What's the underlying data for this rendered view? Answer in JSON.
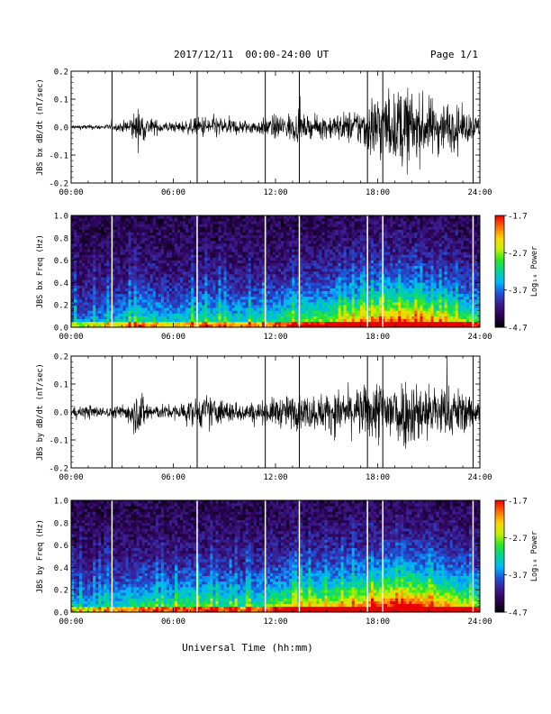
{
  "header": {
    "title": "2017/12/11  00:00-24:00 UT",
    "page": "Page 1/1"
  },
  "footer": {
    "xlabel": "Universal Time (hh:mm)"
  },
  "colors": {
    "trace": "#000000",
    "gap_line": "#000000",
    "gap_line_spectrogram": "#ffffff",
    "colormap": [
      "#000000",
      "#2a0050",
      "#3c1a8c",
      "#1e4fd6",
      "#00b4ff",
      "#00d2a0",
      "#28e628",
      "#c8f000",
      "#ffd200",
      "#ff6a00",
      "#e60000"
    ]
  },
  "chart_data": [
    {
      "type": "line",
      "name": "bx-timeseries",
      "ylabel": "JBS bx dB/dt (nT/sec)",
      "xlim": [
        0,
        24
      ],
      "ylim": [
        -0.2,
        0.2
      ],
      "x_ticks": [
        "00:00",
        "06:00",
        "12:00",
        "18:00",
        "24:00"
      ],
      "y_ticks": [
        "0.2",
        "0.1",
        "0.0",
        "-0.1",
        "-0.2"
      ],
      "data_gaps_hours": [
        2.4,
        7.4,
        11.4,
        13.4,
        17.4,
        18.3,
        23.6
      ],
      "amplitude_envelope": {
        "hours": [
          0,
          2,
          3,
          3.5,
          4,
          4.5,
          5,
          6,
          7,
          8,
          9,
          10,
          11,
          12,
          13,
          14,
          15,
          16,
          17,
          17.5,
          18,
          19,
          19.5,
          20,
          21,
          22,
          23,
          24
        ],
        "abs_dbdt": [
          0.01,
          0.01,
          0.02,
          0.05,
          0.08,
          0.04,
          0.03,
          0.02,
          0.03,
          0.05,
          0.04,
          0.03,
          0.03,
          0.05,
          0.06,
          0.04,
          0.05,
          0.06,
          0.08,
          0.12,
          0.16,
          0.13,
          0.19,
          0.14,
          0.12,
          0.11,
          0.07,
          0.04
        ]
      }
    },
    {
      "type": "heatmap",
      "name": "bx-spectrogram",
      "ylabel": "JBS bx Freq (Hz)",
      "xlim": [
        0,
        24
      ],
      "ylim": [
        0,
        1.0
      ],
      "x_ticks": [
        "00:00",
        "06:00",
        "12:00",
        "18:00",
        "24:00"
      ],
      "y_ticks": [
        "1.0",
        "0.8",
        "0.6",
        "0.4",
        "0.2",
        "0.0"
      ],
      "data_gaps_hours": [
        2.4,
        7.4,
        11.4,
        13.4,
        17.4,
        18.3,
        23.6
      ],
      "colorbar": {
        "label": "Log₁₀ Power",
        "range": [
          -4.7,
          -1.7
        ],
        "ticks": [
          "-1.7",
          "-2.7",
          "-3.7",
          "-4.7"
        ]
      },
      "activity_profile": {
        "hours": [
          0,
          2,
          3,
          4,
          5,
          6,
          7,
          8,
          9,
          10,
          11,
          12,
          13,
          14,
          15,
          16,
          17,
          18,
          19,
          20,
          21,
          22,
          23,
          24
        ],
        "level": [
          0.25,
          0.3,
          0.35,
          0.45,
          0.4,
          0.35,
          0.4,
          0.45,
          0.4,
          0.4,
          0.4,
          0.45,
          0.5,
          0.55,
          0.55,
          0.65,
          0.7,
          0.75,
          0.8,
          0.8,
          0.7,
          0.65,
          0.55,
          0.5
        ]
      }
    },
    {
      "type": "line",
      "name": "by-timeseries",
      "ylabel": "JBS by dB/dt (nT/sec)",
      "xlim": [
        0,
        24
      ],
      "ylim": [
        -0.2,
        0.2
      ],
      "x_ticks": [
        "00:00",
        "06:00",
        "12:00",
        "18:00",
        "24:00"
      ],
      "y_ticks": [
        "0.2",
        "0.1",
        "0.0",
        "-0.1",
        "-0.2"
      ],
      "data_gaps_hours": [
        2.4,
        7.4,
        11.4,
        13.4,
        17.4,
        18.3,
        23.6
      ],
      "amplitude_envelope": {
        "hours": [
          0,
          1,
          2,
          3,
          3.5,
          4,
          4.5,
          5,
          6,
          7,
          8,
          9,
          10,
          11,
          12,
          13,
          14,
          15,
          16,
          17,
          18,
          19,
          20,
          21,
          22,
          23,
          24
        ],
        "abs_dbdt": [
          0.02,
          0.03,
          0.02,
          0.03,
          0.06,
          0.1,
          0.05,
          0.03,
          0.03,
          0.05,
          0.07,
          0.05,
          0.04,
          0.04,
          0.06,
          0.07,
          0.07,
          0.08,
          0.09,
          0.1,
          0.13,
          0.15,
          0.14,
          0.12,
          0.11,
          0.09,
          0.06
        ]
      }
    },
    {
      "type": "heatmap",
      "name": "by-spectrogram",
      "ylabel": "JBS by Freq (Hz)",
      "xlim": [
        0,
        24
      ],
      "ylim": [
        0,
        1.0
      ],
      "x_ticks": [
        "00:00",
        "06:00",
        "12:00",
        "18:00",
        "24:00"
      ],
      "y_ticks": [
        "1.0",
        "0.8",
        "0.6",
        "0.4",
        "0.2",
        "0.0"
      ],
      "data_gaps_hours": [
        2.4,
        7.4,
        11.4,
        13.4,
        17.4,
        18.3,
        23.6
      ],
      "colorbar": {
        "label": "Log₁₀ Power",
        "range": [
          -4.7,
          -1.7
        ],
        "ticks": [
          "-1.7",
          "-2.7",
          "-3.7",
          "-4.7"
        ]
      },
      "activity_profile": {
        "hours": [
          0,
          2,
          3,
          4,
          5,
          6,
          7,
          8,
          9,
          10,
          11,
          12,
          13,
          14,
          15,
          16,
          17,
          18,
          19,
          20,
          21,
          22,
          23,
          24
        ],
        "level": [
          0.3,
          0.35,
          0.4,
          0.45,
          0.45,
          0.45,
          0.5,
          0.5,
          0.45,
          0.45,
          0.45,
          0.55,
          0.6,
          0.65,
          0.65,
          0.7,
          0.75,
          0.85,
          0.9,
          0.9,
          0.8,
          0.75,
          0.65,
          0.55
        ]
      }
    }
  ]
}
